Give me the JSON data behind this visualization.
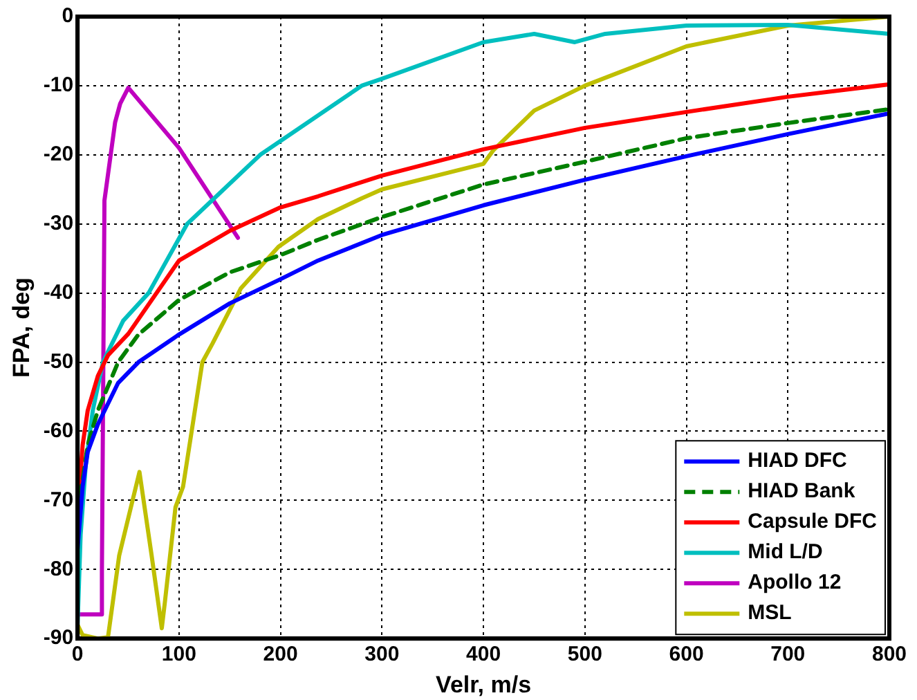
{
  "chart_data": {
    "type": "line",
    "xlabel": "Velr, m/s",
    "ylabel": "FPA, deg",
    "xlim": [
      0,
      800
    ],
    "xticks": [
      0,
      100,
      200,
      300,
      400,
      500,
      600,
      700,
      800
    ],
    "ylim": [
      -90,
      0
    ],
    "yticks": [
      -90,
      -80,
      -70,
      -60,
      -50,
      -40,
      -30,
      -20,
      -10,
      0
    ],
    "grid": true,
    "legend": "bottom right",
    "marker": "none",
    "series": [
      {
        "name": "HIAD DFC",
        "color": "#0000ff",
        "x": [
          0,
          5,
          10,
          20,
          40,
          60,
          100,
          150,
          200,
          237,
          300,
          400,
          500,
          600,
          700,
          800
        ],
        "values": [
          -77,
          -68,
          -63,
          -59,
          -53,
          -50,
          -46,
          -41.5,
          -38,
          -35.3,
          -31.6,
          -27.3,
          -23.6,
          -20.2,
          -17,
          -14
        ]
      },
      {
        "name": "HIAD Bank",
        "color": "#008000",
        "line_style": "dashed",
        "x": [
          0,
          10,
          20,
          40,
          60,
          100,
          150,
          200,
          237,
          300,
          400,
          500,
          600,
          700,
          800
        ],
        "values": [
          -72,
          -62,
          -57,
          -50,
          -46,
          -41,
          -37,
          -34.5,
          -32.3,
          -29,
          -24.3,
          -21,
          -17.6,
          -15.4,
          -13.4
        ]
      },
      {
        "name": "Capsule DFC",
        "color": "#ff0000",
        "x": [
          2,
          5,
          10,
          20,
          30,
          50,
          100,
          150,
          200,
          237,
          300,
          400,
          500,
          600,
          700,
          800
        ],
        "values": [
          -68,
          -62,
          -57,
          -52,
          -49,
          -45.9,
          -35.3,
          -31,
          -27.6,
          -26,
          -23,
          -19.2,
          -16.1,
          -13.8,
          -11.6,
          -9.8
        ]
      },
      {
        "name": "Mid L/D",
        "color": "#00bfbf",
        "x": [
          0,
          3,
          8,
          15,
          25,
          45,
          70,
          108,
          180,
          280,
          300,
          400,
          450,
          490,
          520,
          600,
          700,
          800
        ],
        "values": [
          -88,
          -75,
          -65,
          -57,
          -50,
          -44,
          -40,
          -30,
          -20,
          -10,
          -9,
          -3.7,
          -2.5,
          -3.7,
          -2.5,
          -1.3,
          -1.2,
          -2.5
        ]
      },
      {
        "name": "Apollo 12",
        "color": "#bf00bf",
        "x": [
          0,
          24,
          24,
          26.5,
          37,
          42,
          50,
          100,
          158
        ],
        "values": [
          -86.5,
          -86.5,
          -80,
          -26.6,
          -15.3,
          -12.6,
          -10.3,
          -19,
          -32
        ]
      },
      {
        "name": "MSL",
        "color": "#bfbf00",
        "x": [
          0,
          5,
          20,
          30,
          41,
          61,
          73,
          83,
          86,
          96.5,
          104,
          123,
          133,
          161,
          198,
          237,
          280,
          300,
          400,
          410,
          450,
          500,
          600,
          700,
          800
        ],
        "values": [
          -88,
          -89.5,
          -90,
          -89.8,
          -78,
          -65.9,
          -78,
          -88.5,
          -84.8,
          -71,
          -68,
          -50,
          -47.3,
          -39.3,
          -33.3,
          -29.3,
          -26.3,
          -25,
          -21.3,
          -19.3,
          -13.6,
          -10,
          -4.3,
          -1.3,
          0
        ]
      }
    ]
  }
}
